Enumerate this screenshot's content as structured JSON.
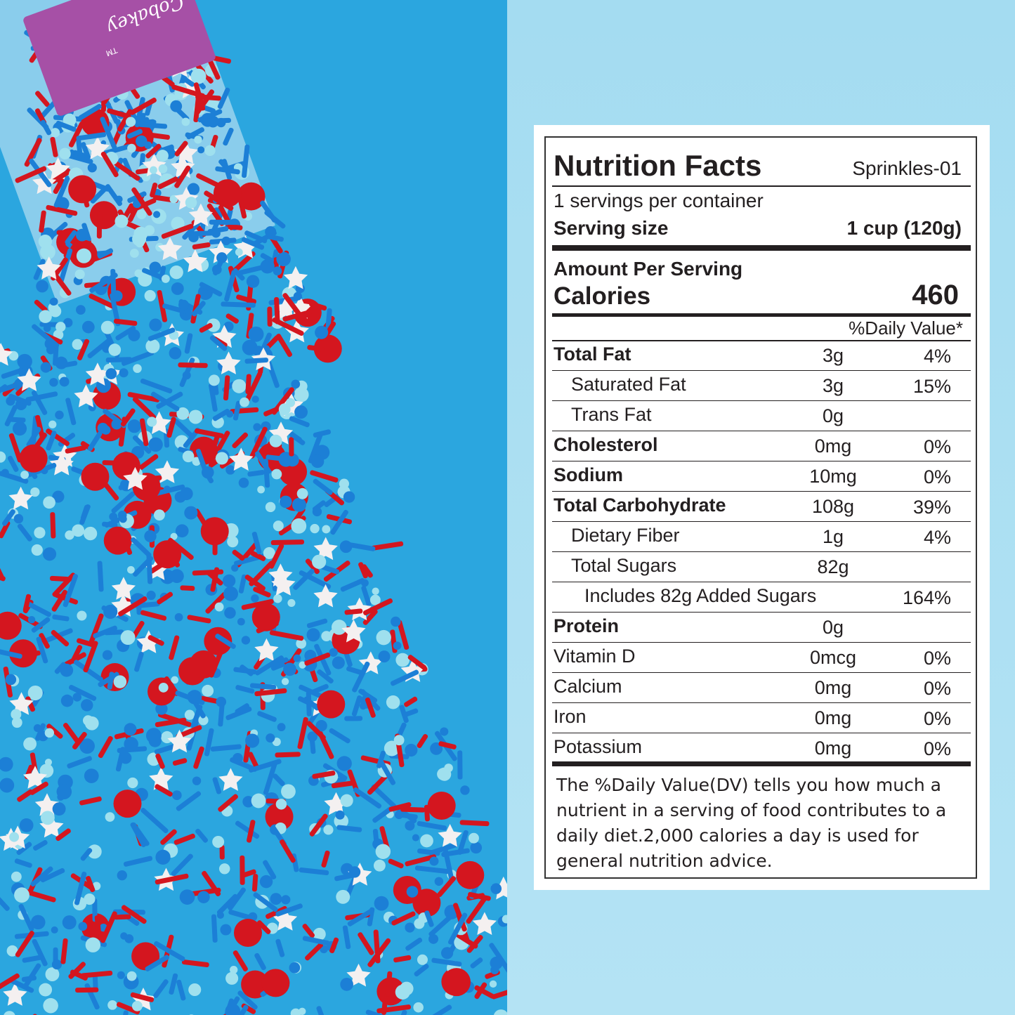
{
  "brand": {
    "logo_text": "Cobakey",
    "trademark": "TM"
  },
  "colors": {
    "photo_bg": "#2ba6df",
    "right_bg": "#a9def2",
    "sprinkle_red": "#d4161f",
    "sprinkle_blue": "#1c7fd6",
    "sprinkle_light": "#9fe0ee",
    "sprinkle_white": "#f4f0f0"
  },
  "label": {
    "title": "Nutrition Facts",
    "product_code": "Sprinkles-01",
    "servings_per_container": "1 servings per container",
    "serving_size_label": "Serving size",
    "serving_size_value": "1 cup (120g)",
    "amount_per_serving": "Amount Per Serving",
    "calories_label": "Calories",
    "calories_value": "460",
    "daily_value_header": "%Daily Value*",
    "rows": [
      {
        "name": "Total Fat",
        "amount": "3g",
        "dv": "4%"
      },
      {
        "name": "Saturated  Fat",
        "amount": "3g",
        "dv": "15%"
      },
      {
        "name": "Trans Fat",
        "amount": "0g",
        "dv": ""
      },
      {
        "name": "Cholesterol",
        "amount": "0mg",
        "dv": "0%"
      },
      {
        "name": "Sodium",
        "amount": "10mg",
        "dv": "0%"
      },
      {
        "name": "Total Carbohydrate",
        "amount": "108g",
        "dv": "39%"
      },
      {
        "name": "Dietary Fiber",
        "amount": "1g",
        "dv": "4%"
      },
      {
        "name": "Total Sugars",
        "amount": "82g",
        "dv": ""
      },
      {
        "name": "Includes 82g Added Sugars",
        "amount": "",
        "dv": "164%"
      },
      {
        "name": "Protein",
        "amount": "0g",
        "dv": ""
      },
      {
        "name": "Vitamin D",
        "amount": "0mcg",
        "dv": "0%"
      },
      {
        "name": "Calcium",
        "amount": "0mg",
        "dv": "0%"
      },
      {
        "name": "Iron",
        "amount": "0mg",
        "dv": "0%"
      },
      {
        "name": "Potassium",
        "amount": "0mg",
        "dv": "0%"
      }
    ],
    "footnote": "The %Daily Value(DV) tells you how much a nutrient in a serving of food contributes to a daily diet.2,000 calories a day is used for general nutrition advice."
  }
}
